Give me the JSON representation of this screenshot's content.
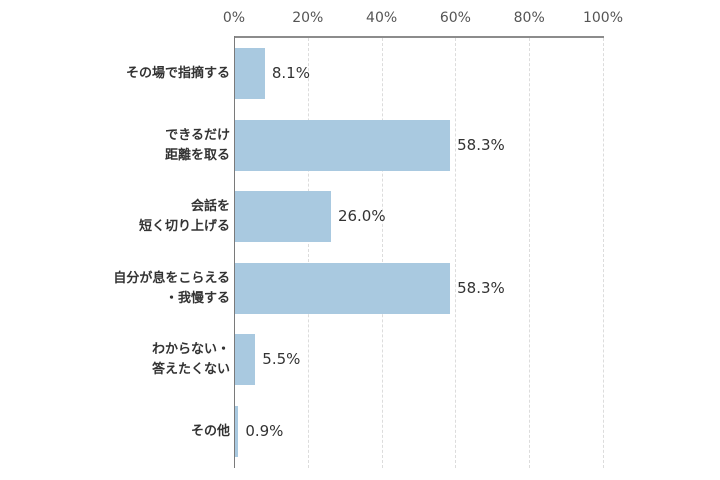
{
  "chart_data": {
    "type": "bar",
    "orientation": "horizontal",
    "title": "",
    "xlabel": "",
    "ylabel": "",
    "xlim": [
      0,
      100
    ],
    "x_ticks": [
      "0%",
      "20%",
      "40%",
      "60%",
      "80%",
      "100%"
    ],
    "grid": true,
    "legend": null,
    "bar_color": "#a9c9e0",
    "categories": [
      "その場で指摘する",
      "できるだけ\n距離を取る",
      "会話を\n短く切り上げる",
      "自分が息をこらえる\n・我慢する",
      "わからない・\n答えたくない",
      "その他"
    ],
    "values": [
      8.1,
      58.3,
      26.0,
      58.3,
      5.5,
      0.9
    ],
    "value_labels": [
      "8.1%",
      "58.3%",
      "26.0%",
      "58.3%",
      "5.5%",
      "0.9%"
    ]
  }
}
